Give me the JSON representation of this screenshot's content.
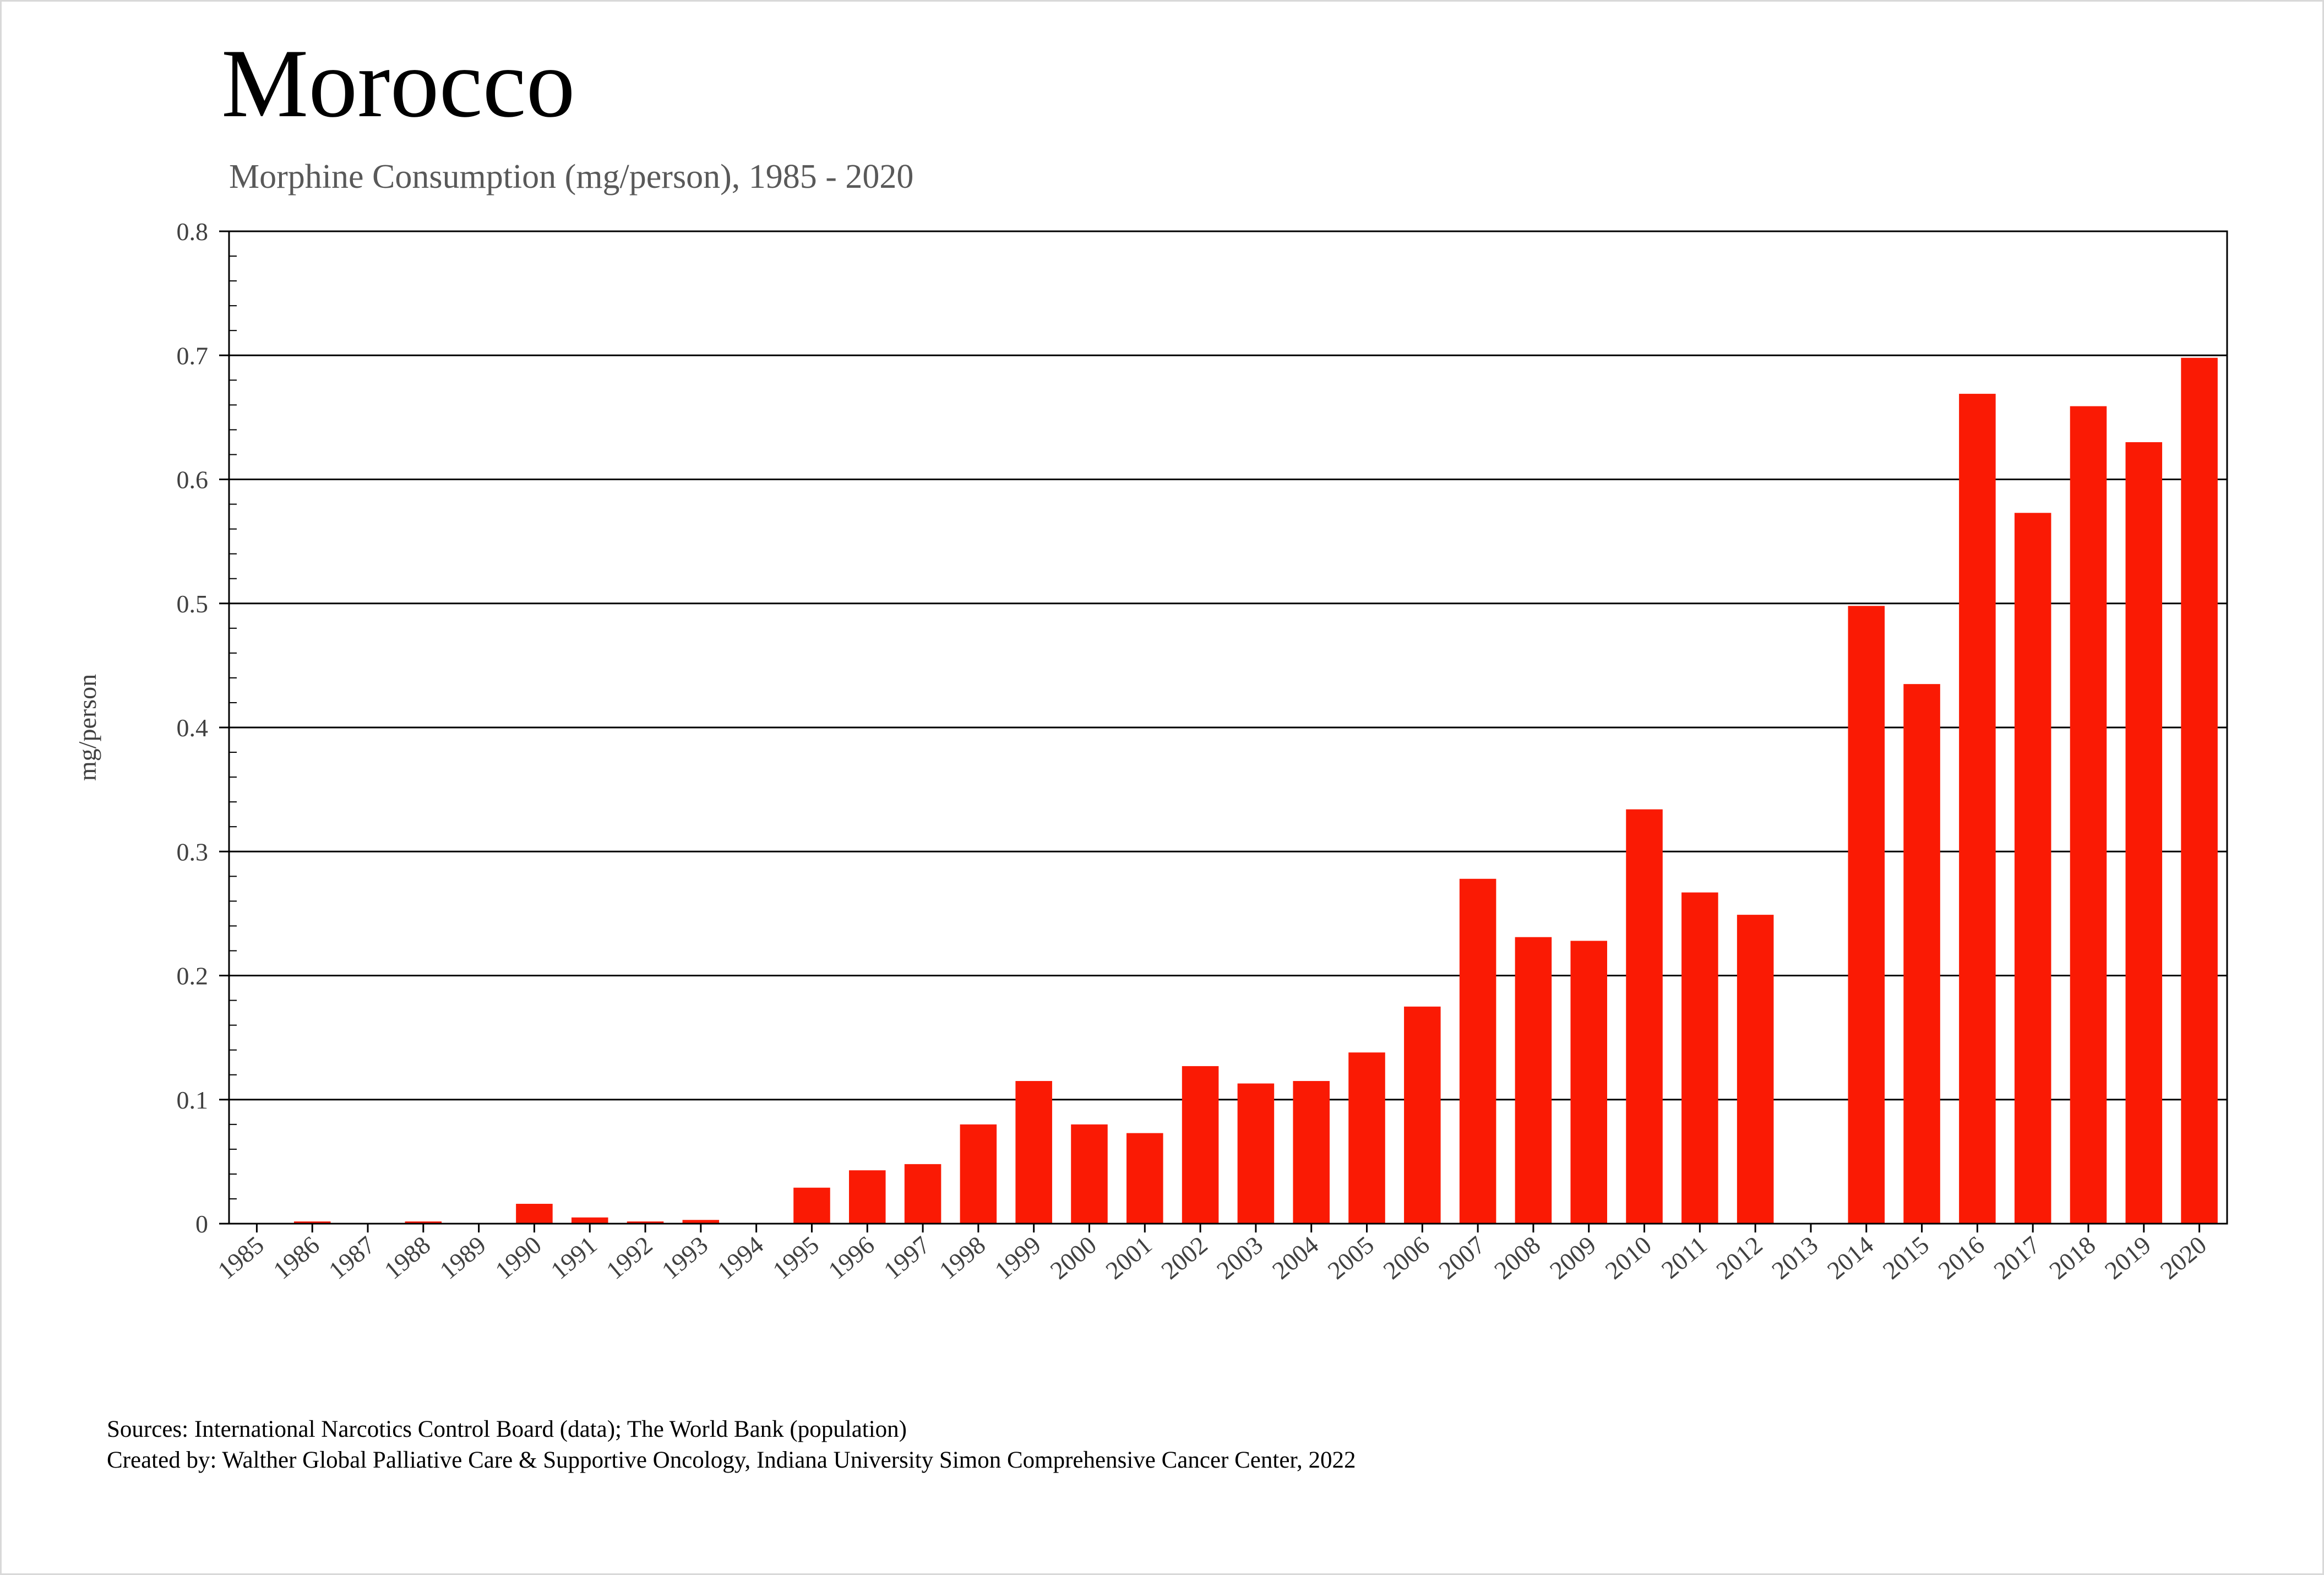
{
  "header": {
    "title": "Morocco",
    "subtitle": "Morphine Consumption (mg/person), 1985 - 2020"
  },
  "footer": {
    "sources": "Sources: International Narcotics Control Board (data); The World Bank (population)",
    "created_by": "Created by: Walther  Global Palliative Care & Supportive Oncology, Indiana University Simon Comprehensive Cancer Center, 2022"
  },
  "chart_data": {
    "type": "bar",
    "title": "Morocco",
    "subtitle": "Morphine Consumption (mg/person), 1985 - 2020",
    "xlabel": "",
    "ylabel": "mg/person",
    "ylim": [
      0,
      0.8
    ],
    "yticks": [
      0,
      0.1,
      0.2,
      0.3,
      0.4,
      0.5,
      0.6,
      0.7,
      0.8
    ],
    "ytick_labels": [
      "0",
      "0.1",
      "0.2",
      "0.3",
      "0.4",
      "0.5",
      "0.6",
      "0.7",
      "0.8"
    ],
    "grid": "horizontal major gridlines",
    "bar_color": "#fa1a04",
    "categories": [
      "1985",
      "1986",
      "1987",
      "1988",
      "1989",
      "1990",
      "1991",
      "1992",
      "1993",
      "1994",
      "1995",
      "1996",
      "1997",
      "1998",
      "1999",
      "2000",
      "2001",
      "2002",
      "2003",
      "2004",
      "2005",
      "2006",
      "2007",
      "2008",
      "2009",
      "2010",
      "2011",
      "2012",
      "2013",
      "2014",
      "2015",
      "2016",
      "2017",
      "2018",
      "2019",
      "2020"
    ],
    "values": [
      0,
      0.001,
      0,
      0.001,
      0,
      0.016,
      0.005,
      0.001,
      0.003,
      0,
      0.029,
      0.043,
      0.048,
      0.08,
      0.115,
      0.08,
      0.073,
      0.127,
      0.113,
      0.115,
      0.138,
      0.175,
      0.278,
      0.231,
      0.228,
      0.334,
      0.267,
      0.249,
      0,
      0.498,
      0.435,
      0.669,
      0.573,
      0.659,
      0.63,
      0.698
    ]
  }
}
